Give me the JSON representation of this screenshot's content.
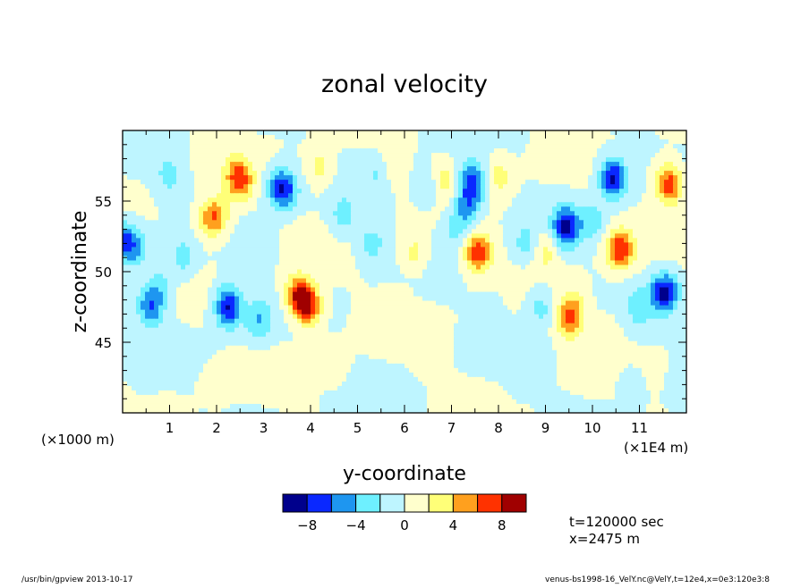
{
  "chart_data": {
    "type": "heatmap",
    "title": "zonal velocity",
    "xlabel": "y-coordinate",
    "ylabel": "z-coordinate",
    "x_unit_label": "(×1E4 m)",
    "y_unit_label": "(×1000 m)",
    "x_ticks": [
      1,
      2,
      3,
      4,
      5,
      6,
      7,
      8,
      9,
      10,
      11
    ],
    "y_ticks": [
      45,
      50,
      55
    ],
    "xlim": [
      0,
      12
    ],
    "ylim": [
      40,
      60
    ],
    "colorbar": {
      "levels": [
        -10,
        -8,
        -6,
        -4,
        -2,
        0,
        2,
        4,
        6,
        8,
        10
      ],
      "tick_labels": [
        "−8",
        "−4",
        "0",
        "4",
        "8"
      ],
      "tick_values": [
        -8,
        -4,
        0,
        4,
        8
      ],
      "colors": [
        "#00008c",
        "#0a28ff",
        "#1e96f0",
        "#6ef0ff",
        "#bef5ff",
        "#ffffcd",
        "#ffff78",
        "#ffa01e",
        "#ff3200",
        "#a00000"
      ]
    },
    "features": [
      {
        "y": 0.05,
        "z": 52.2,
        "value": -6
      },
      {
        "y": 0.3,
        "z": 51.5,
        "value": -3
      },
      {
        "y": 0.6,
        "z": 47.5,
        "value": -6
      },
      {
        "y": 0.8,
        "z": 49.0,
        "value": -3
      },
      {
        "y": 1.0,
        "z": 56.8,
        "value": -3
      },
      {
        "y": 1.3,
        "z": 51.0,
        "value": -3
      },
      {
        "y": 1.8,
        "z": 53.5,
        "value": 3
      },
      {
        "y": 2.0,
        "z": 54.0,
        "value": 5
      },
      {
        "y": 2.25,
        "z": 48.0,
        "value": -3
      },
      {
        "y": 2.25,
        "z": 47.3,
        "value": -6
      },
      {
        "y": 2.45,
        "z": 57.0,
        "value": 3
      },
      {
        "y": 2.5,
        "z": 56.3,
        "value": 5
      },
      {
        "y": 2.9,
        "z": 46.6,
        "value": -4
      },
      {
        "y": 3.3,
        "z": 56.0,
        "value": -3
      },
      {
        "y": 3.45,
        "z": 55.8,
        "value": -6
      },
      {
        "y": 3.0,
        "z": 52.0,
        "value": -1.5
      },
      {
        "y": 3.7,
        "z": 48.5,
        "value": 3
      },
      {
        "y": 3.8,
        "z": 48.3,
        "value": 5
      },
      {
        "y": 3.95,
        "z": 47.5,
        "value": 7
      },
      {
        "y": 4.2,
        "z": 57.3,
        "value": 3
      },
      {
        "y": 4.7,
        "z": 54.0,
        "value": -3
      },
      {
        "y": 5.3,
        "z": 52.0,
        "value": -3
      },
      {
        "y": 5.5,
        "z": 57.0,
        "value": -3
      },
      {
        "y": 5.7,
        "z": 57.4,
        "value": 3
      },
      {
        "y": 6.2,
        "z": 51.3,
        "value": 3
      },
      {
        "y": 6.5,
        "z": 56.0,
        "value": -3
      },
      {
        "y": 6.8,
        "z": 56.5,
        "value": 3
      },
      {
        "y": 7.1,
        "z": 53.0,
        "value": -3
      },
      {
        "y": 7.3,
        "z": 54.5,
        "value": -3
      },
      {
        "y": 7.4,
        "z": 55.2,
        "value": -3
      },
      {
        "y": 7.45,
        "z": 56.5,
        "value": -6
      },
      {
        "y": 7.5,
        "z": 51.5,
        "value": 3
      },
      {
        "y": 7.6,
        "z": 51.3,
        "value": 5
      },
      {
        "y": 8.0,
        "z": 56.8,
        "value": 3
      },
      {
        "y": 8.6,
        "z": 52.0,
        "value": -3
      },
      {
        "y": 8.9,
        "z": 47.5,
        "value": -3
      },
      {
        "y": 9.0,
        "z": 51.5,
        "value": 3
      },
      {
        "y": 9.4,
        "z": 53.5,
        "value": -3
      },
      {
        "y": 9.45,
        "z": 53.0,
        "value": -6
      },
      {
        "y": 9.5,
        "z": 46.5,
        "value": 5
      },
      {
        "y": 9.6,
        "z": 47.5,
        "value": 3
      },
      {
        "y": 10.0,
        "z": 53.5,
        "value": -3
      },
      {
        "y": 10.4,
        "z": 57.0,
        "value": -3
      },
      {
        "y": 10.45,
        "z": 56.5,
        "value": -6
      },
      {
        "y": 10.55,
        "z": 51.7,
        "value": 3
      },
      {
        "y": 10.6,
        "z": 51.5,
        "value": 5
      },
      {
        "y": 10.3,
        "z": 45.5,
        "value": 1.5
      },
      {
        "y": 11.0,
        "z": 47.5,
        "value": -3
      },
      {
        "y": 11.5,
        "z": 48.5,
        "value": -3
      },
      {
        "y": 11.55,
        "z": 48.5,
        "value": -6
      },
      {
        "y": 11.6,
        "z": 56.5,
        "value": 3
      },
      {
        "y": 11.65,
        "z": 56.0,
        "value": 5
      },
      {
        "y": 0.5,
        "z": 43.0,
        "value": -1.5
      },
      {
        "y": 2.0,
        "z": 42.0,
        "value": 1.5
      },
      {
        "y": 4.5,
        "z": 43.5,
        "value": 1.5
      },
      {
        "y": 6.5,
        "z": 44.0,
        "value": 1.5
      },
      {
        "y": 8.5,
        "z": 42.5,
        "value": -1.5
      },
      {
        "y": 10.8,
        "z": 42.0,
        "value": -1.5
      },
      {
        "y": 5.8,
        "z": 47.5,
        "value": 1.5
      },
      {
        "y": 7.8,
        "z": 47.0,
        "value": -1.5
      }
    ]
  },
  "annotations": {
    "time": "t=120000 sec",
    "position": "x=2475 m",
    "program": "/usr/bin/gpview  2013-10-17",
    "source": "venus-bs1998-16_VelY.nc@VelY,t=12e4,x=0e3:120e3:8"
  }
}
